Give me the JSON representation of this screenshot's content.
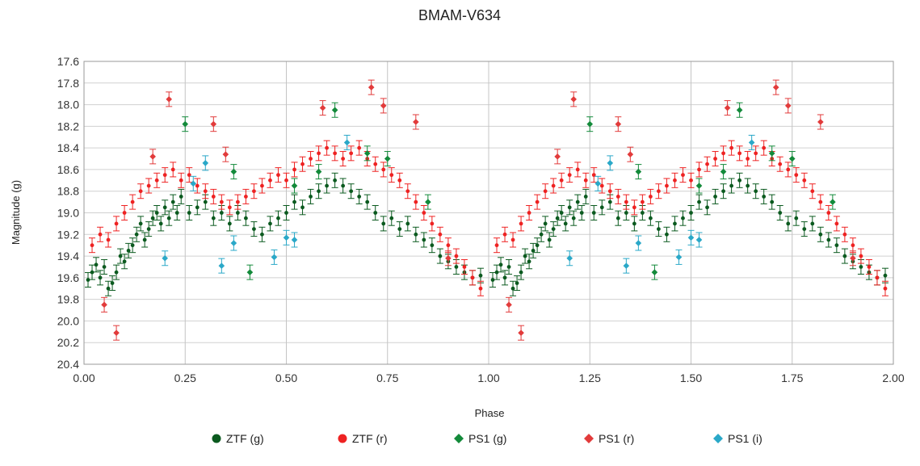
{
  "chart_data": {
    "type": "scatter",
    "title": "BMAM-V634",
    "xlabel": "Phase",
    "ylabel": "Magnitude (g)",
    "xlim": [
      0.0,
      2.0
    ],
    "ylim": [
      17.6,
      20.4
    ],
    "y_inverted": true,
    "grid": true,
    "legend_position": "bottom",
    "x_ticks": [
      "0.00",
      "0.25",
      "0.50",
      "0.75",
      "1.00",
      "1.25",
      "1.50",
      "1.75",
      "2.00"
    ],
    "y_ticks": [
      "17.6",
      "17.8",
      "18.0",
      "18.2",
      "18.4",
      "18.6",
      "18.8",
      "19.0",
      "19.2",
      "19.4",
      "19.6",
      "19.8",
      "20.0",
      "20.2",
      "20.4"
    ],
    "series": [
      {
        "name": "ZTF (g)",
        "marker": "circle",
        "color": "#0b5a1f",
        "points": [
          [
            0.01,
            19.62
          ],
          [
            0.02,
            19.55
          ],
          [
            0.03,
            19.48
          ],
          [
            0.04,
            19.6
          ],
          [
            0.05,
            19.5
          ],
          [
            0.06,
            19.7
          ],
          [
            0.07,
            19.65
          ],
          [
            0.08,
            19.55
          ],
          [
            0.09,
            19.4
          ],
          [
            0.1,
            19.45
          ],
          [
            0.11,
            19.35
          ],
          [
            0.12,
            19.3
          ],
          [
            0.13,
            19.2
          ],
          [
            0.14,
            19.1
          ],
          [
            0.15,
            19.25
          ],
          [
            0.16,
            19.15
          ],
          [
            0.17,
            19.05
          ],
          [
            0.18,
            19.0
          ],
          [
            0.19,
            19.1
          ],
          [
            0.2,
            18.95
          ],
          [
            0.21,
            19.05
          ],
          [
            0.22,
            18.9
          ],
          [
            0.23,
            19.0
          ],
          [
            0.24,
            18.85
          ],
          [
            0.26,
            19.0
          ],
          [
            0.28,
            18.95
          ],
          [
            0.3,
            18.9
          ],
          [
            0.32,
            19.05
          ],
          [
            0.34,
            19.0
          ],
          [
            0.36,
            19.1
          ],
          [
            0.38,
            19.0
          ],
          [
            0.4,
            19.05
          ],
          [
            0.42,
            19.15
          ],
          [
            0.44,
            19.2
          ],
          [
            0.46,
            19.1
          ],
          [
            0.48,
            19.05
          ],
          [
            0.5,
            19.0
          ],
          [
            0.52,
            18.9
          ],
          [
            0.54,
            18.95
          ],
          [
            0.56,
            18.85
          ],
          [
            0.58,
            18.8
          ],
          [
            0.6,
            18.75
          ],
          [
            0.62,
            18.7
          ],
          [
            0.64,
            18.75
          ],
          [
            0.66,
            18.8
          ],
          [
            0.68,
            18.85
          ],
          [
            0.7,
            18.9
          ],
          [
            0.72,
            19.0
          ],
          [
            0.74,
            19.1
          ],
          [
            0.76,
            19.05
          ],
          [
            0.78,
            19.15
          ],
          [
            0.8,
            19.1
          ],
          [
            0.82,
            19.2
          ],
          [
            0.84,
            19.25
          ],
          [
            0.86,
            19.3
          ],
          [
            0.88,
            19.4
          ],
          [
            0.9,
            19.45
          ],
          [
            0.92,
            19.5
          ],
          [
            0.94,
            19.55
          ],
          [
            0.96,
            19.6
          ],
          [
            0.98,
            19.58
          ]
        ]
      },
      {
        "name": "ZTF (r)",
        "marker": "circle",
        "color": "#ee2222",
        "points": [
          [
            0.02,
            19.3
          ],
          [
            0.04,
            19.2
          ],
          [
            0.06,
            19.25
          ],
          [
            0.08,
            19.1
          ],
          [
            0.1,
            19.0
          ],
          [
            0.12,
            18.9
          ],
          [
            0.14,
            18.8
          ],
          [
            0.16,
            18.75
          ],
          [
            0.18,
            18.7
          ],
          [
            0.2,
            18.65
          ],
          [
            0.22,
            18.6
          ],
          [
            0.24,
            18.7
          ],
          [
            0.26,
            18.65
          ],
          [
            0.28,
            18.75
          ],
          [
            0.3,
            18.8
          ],
          [
            0.32,
            18.85
          ],
          [
            0.34,
            18.9
          ],
          [
            0.36,
            18.95
          ],
          [
            0.38,
            18.9
          ],
          [
            0.4,
            18.85
          ],
          [
            0.42,
            18.8
          ],
          [
            0.44,
            18.75
          ],
          [
            0.46,
            18.7
          ],
          [
            0.48,
            18.65
          ],
          [
            0.5,
            18.7
          ],
          [
            0.52,
            18.6
          ],
          [
            0.54,
            18.55
          ],
          [
            0.56,
            18.5
          ],
          [
            0.58,
            18.45
          ],
          [
            0.6,
            18.4
          ],
          [
            0.62,
            18.45
          ],
          [
            0.64,
            18.5
          ],
          [
            0.66,
            18.45
          ],
          [
            0.68,
            18.4
          ],
          [
            0.7,
            18.5
          ],
          [
            0.72,
            18.55
          ],
          [
            0.74,
            18.6
          ],
          [
            0.76,
            18.65
          ],
          [
            0.78,
            18.7
          ],
          [
            0.8,
            18.8
          ],
          [
            0.82,
            18.9
          ],
          [
            0.84,
            19.0
          ],
          [
            0.86,
            19.1
          ],
          [
            0.88,
            19.2
          ],
          [
            0.9,
            19.3
          ],
          [
            0.92,
            19.4
          ],
          [
            0.94,
            19.5
          ],
          [
            0.96,
            19.6
          ],
          [
            0.98,
            19.7
          ]
        ]
      },
      {
        "name": "PS1 (g)",
        "marker": "diamond",
        "color": "#138a3a",
        "points": [
          [
            0.25,
            18.18
          ],
          [
            0.37,
            18.62
          ],
          [
            0.52,
            18.75
          ],
          [
            0.58,
            18.62
          ],
          [
            0.62,
            18.05
          ],
          [
            0.7,
            18.45
          ],
          [
            0.75,
            18.5
          ],
          [
            0.85,
            18.9
          ],
          [
            0.41,
            19.55
          ]
        ]
      },
      {
        "name": "PS1 (r)",
        "marker": "diamond",
        "color": "#e23b3b",
        "points": [
          [
            0.08,
            20.11
          ],
          [
            0.21,
            17.95
          ],
          [
            0.32,
            18.18
          ],
          [
            0.71,
            17.84
          ],
          [
            0.74,
            18.01
          ],
          [
            0.59,
            18.03
          ],
          [
            0.82,
            18.16
          ],
          [
            0.05,
            19.85
          ],
          [
            0.17,
            18.48
          ],
          [
            0.35,
            18.46
          ],
          [
            0.9,
            19.42
          ]
        ]
      },
      {
        "name": "PS1 (i)",
        "marker": "diamond",
        "color": "#2aa8c8",
        "points": [
          [
            0.2,
            19.42
          ],
          [
            0.27,
            18.73
          ],
          [
            0.3,
            18.54
          ],
          [
            0.34,
            19.49
          ],
          [
            0.37,
            19.28
          ],
          [
            0.47,
            19.41
          ],
          [
            0.5,
            19.23
          ],
          [
            0.52,
            19.25
          ],
          [
            0.65,
            18.35
          ]
        ]
      }
    ]
  }
}
